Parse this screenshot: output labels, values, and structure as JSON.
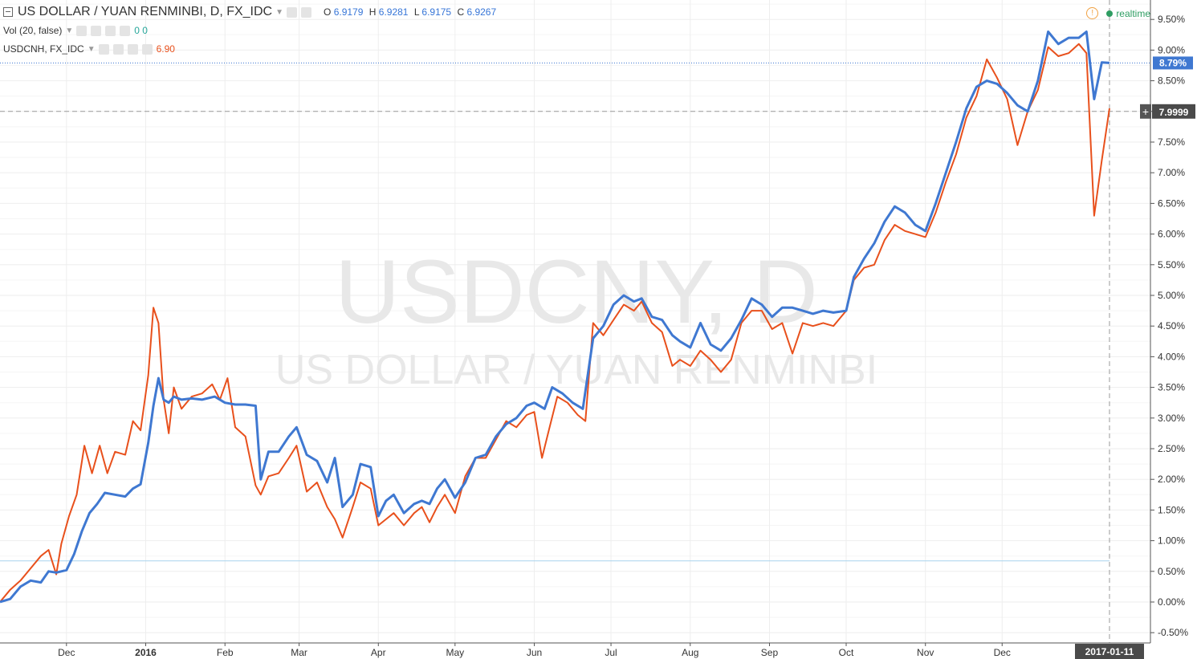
{
  "header": {
    "title": "US DOLLAR / YUAN RENMINBI, D, FX_IDC",
    "ohlc": [
      {
        "label": "O",
        "value": "6.9179"
      },
      {
        "label": "H",
        "value": "6.9281"
      },
      {
        "label": "L",
        "value": "6.9175"
      },
      {
        "label": "C",
        "value": "6.9267"
      }
    ],
    "vol_label": "Vol (20, false)",
    "vol_values": "0 0",
    "compare_label": "USDCNH, FX_IDC",
    "compare_value": "6.90",
    "realtime": "realtime",
    "warn_icon": "!"
  },
  "watermark": {
    "line1": "USDCNY, D",
    "line2": "US DOLLAR / YUAN RENMINBI"
  },
  "price_tags": {
    "main": "8.79%",
    "cursor": "7.9999",
    "cursor_plus": "+",
    "date_tag": "2017-01-11"
  },
  "colors": {
    "usdcny": "#3f78d1",
    "usdcnh": "#e8501c",
    "accent": "#2e9d62"
  },
  "chart_data": {
    "type": "line",
    "y_unit": "%",
    "ylim": [
      -0.6,
      9.8
    ],
    "y_ticks": [
      "9.50%",
      "9.00%",
      "8.50%",
      "8.00%",
      "7.50%",
      "7.00%",
      "6.50%",
      "6.00%",
      "5.50%",
      "5.00%",
      "4.50%",
      "4.00%",
      "3.50%",
      "3.00%",
      "2.50%",
      "2.00%",
      "1.50%",
      "1.00%",
      "0.50%",
      "0.00%",
      "-0.50%"
    ],
    "x_ticks": [
      {
        "label": "Dec",
        "day": 26,
        "bold": false
      },
      {
        "label": "2016",
        "day": 57,
        "bold": true
      },
      {
        "label": "Feb",
        "day": 88,
        "bold": false
      },
      {
        "label": "Mar",
        "day": 117,
        "bold": false
      },
      {
        "label": "Apr",
        "day": 148,
        "bold": false
      },
      {
        "label": "May",
        "day": 178,
        "bold": false
      },
      {
        "label": "Jun",
        "day": 209,
        "bold": false
      },
      {
        "label": "Jul",
        "day": 239,
        "bold": false
      },
      {
        "label": "Aug",
        "day": 270,
        "bold": false
      },
      {
        "label": "Sep",
        "day": 301,
        "bold": false
      },
      {
        "label": "Oct",
        "day": 331,
        "bold": false
      },
      {
        "label": "Nov",
        "day": 362,
        "bold": false
      },
      {
        "label": "Dec",
        "day": 392,
        "bold": false
      }
    ],
    "x_range_days": [
      0,
      434
    ],
    "x_cursor_day": 434,
    "h_line_main": 8.79,
    "h_line_cursor": 7.9999,
    "h_line_low": 0.67,
    "series": [
      {
        "name": "USDCNY",
        "color": "#3f78d1",
        "points": [
          [
            0,
            0.0
          ],
          [
            4,
            0.05
          ],
          [
            8,
            0.25
          ],
          [
            12,
            0.35
          ],
          [
            16,
            0.32
          ],
          [
            19,
            0.5
          ],
          [
            22,
            0.48
          ],
          [
            26,
            0.52
          ],
          [
            29,
            0.78
          ],
          [
            32,
            1.15
          ],
          [
            35,
            1.45
          ],
          [
            38,
            1.6
          ],
          [
            41,
            1.78
          ],
          [
            45,
            1.75
          ],
          [
            49,
            1.72
          ],
          [
            52,
            1.85
          ],
          [
            55,
            1.92
          ],
          [
            58,
            2.6
          ],
          [
            60,
            3.2
          ],
          [
            62,
            3.65
          ],
          [
            64,
            3.3
          ],
          [
            66,
            3.25
          ],
          [
            68,
            3.35
          ],
          [
            71,
            3.3
          ],
          [
            75,
            3.32
          ],
          [
            79,
            3.3
          ],
          [
            84,
            3.35
          ],
          [
            88,
            3.25
          ],
          [
            92,
            3.22
          ],
          [
            96,
            3.22
          ],
          [
            100,
            3.2
          ],
          [
            102,
            2.0
          ],
          [
            105,
            2.45
          ],
          [
            109,
            2.45
          ],
          [
            113,
            2.7
          ],
          [
            116,
            2.85
          ],
          [
            120,
            2.4
          ],
          [
            124,
            2.3
          ],
          [
            128,
            1.95
          ],
          [
            131,
            2.35
          ],
          [
            134,
            1.55
          ],
          [
            138,
            1.75
          ],
          [
            141,
            2.25
          ],
          [
            145,
            2.2
          ],
          [
            148,
            1.4
          ],
          [
            151,
            1.65
          ],
          [
            154,
            1.75
          ],
          [
            158,
            1.45
          ],
          [
            162,
            1.6
          ],
          [
            165,
            1.65
          ],
          [
            168,
            1.6
          ],
          [
            171,
            1.85
          ],
          [
            174,
            2.0
          ],
          [
            178,
            1.7
          ],
          [
            182,
            1.95
          ],
          [
            186,
            2.35
          ],
          [
            190,
            2.4
          ],
          [
            194,
            2.7
          ],
          [
            198,
            2.9
          ],
          [
            202,
            3.0
          ],
          [
            206,
            3.2
          ],
          [
            209,
            3.25
          ],
          [
            213,
            3.15
          ],
          [
            216,
            3.5
          ],
          [
            220,
            3.4
          ],
          [
            224,
            3.25
          ],
          [
            228,
            3.15
          ],
          [
            232,
            4.3
          ],
          [
            236,
            4.5
          ],
          [
            240,
            4.85
          ],
          [
            244,
            5.0
          ],
          [
            248,
            4.9
          ],
          [
            251,
            4.95
          ],
          [
            255,
            4.65
          ],
          [
            259,
            4.6
          ],
          [
            263,
            4.35
          ],
          [
            266,
            4.25
          ],
          [
            270,
            4.15
          ],
          [
            274,
            4.55
          ],
          [
            278,
            4.2
          ],
          [
            282,
            4.1
          ],
          [
            286,
            4.3
          ],
          [
            290,
            4.6
          ],
          [
            294,
            4.95
          ],
          [
            298,
            4.85
          ],
          [
            302,
            4.65
          ],
          [
            306,
            4.8
          ],
          [
            310,
            4.8
          ],
          [
            314,
            4.75
          ],
          [
            318,
            4.7
          ],
          [
            322,
            4.75
          ],
          [
            326,
            4.72
          ],
          [
            331,
            4.75
          ],
          [
            334,
            5.3
          ],
          [
            338,
            5.6
          ],
          [
            342,
            5.85
          ],
          [
            346,
            6.2
          ],
          [
            350,
            6.45
          ],
          [
            354,
            6.35
          ],
          [
            358,
            6.15
          ],
          [
            362,
            6.05
          ],
          [
            366,
            6.5
          ],
          [
            370,
            7.0
          ],
          [
            374,
            7.5
          ],
          [
            378,
            8.05
          ],
          [
            382,
            8.4
          ],
          [
            386,
            8.5
          ],
          [
            390,
            8.45
          ],
          [
            394,
            8.3
          ],
          [
            398,
            8.1
          ],
          [
            402,
            8.0
          ],
          [
            406,
            8.5
          ],
          [
            410,
            9.3
          ],
          [
            414,
            9.1
          ],
          [
            418,
            9.2
          ],
          [
            422,
            9.2
          ],
          [
            425,
            9.3
          ],
          [
            428,
            8.2
          ],
          [
            431,
            8.8
          ],
          [
            434,
            8.79
          ]
        ]
      },
      {
        "name": "USDCNH",
        "color": "#e8501c",
        "points": [
          [
            0,
            0.0
          ],
          [
            4,
            0.2
          ],
          [
            8,
            0.35
          ],
          [
            12,
            0.55
          ],
          [
            16,
            0.75
          ],
          [
            19,
            0.85
          ],
          [
            22,
            0.45
          ],
          [
            24,
            0.95
          ],
          [
            27,
            1.4
          ],
          [
            30,
            1.75
          ],
          [
            33,
            2.55
          ],
          [
            36,
            2.1
          ],
          [
            39,
            2.55
          ],
          [
            42,
            2.1
          ],
          [
            45,
            2.45
          ],
          [
            49,
            2.4
          ],
          [
            52,
            2.95
          ],
          [
            55,
            2.8
          ],
          [
            58,
            3.7
          ],
          [
            60,
            4.8
          ],
          [
            62,
            4.55
          ],
          [
            64,
            3.3
          ],
          [
            66,
            2.75
          ],
          [
            68,
            3.5
          ],
          [
            71,
            3.15
          ],
          [
            75,
            3.35
          ],
          [
            79,
            3.4
          ],
          [
            83,
            3.55
          ],
          [
            86,
            3.3
          ],
          [
            89,
            3.65
          ],
          [
            92,
            2.85
          ],
          [
            96,
            2.7
          ],
          [
            100,
            1.9
          ],
          [
            102,
            1.75
          ],
          [
            105,
            2.05
          ],
          [
            109,
            2.1
          ],
          [
            113,
            2.35
          ],
          [
            116,
            2.55
          ],
          [
            120,
            1.8
          ],
          [
            124,
            1.95
          ],
          [
            128,
            1.55
          ],
          [
            131,
            1.35
          ],
          [
            134,
            1.05
          ],
          [
            138,
            1.55
          ],
          [
            141,
            1.95
          ],
          [
            145,
            1.85
          ],
          [
            148,
            1.25
          ],
          [
            151,
            1.35
          ],
          [
            154,
            1.45
          ],
          [
            158,
            1.25
          ],
          [
            162,
            1.45
          ],
          [
            165,
            1.55
          ],
          [
            168,
            1.3
          ],
          [
            171,
            1.55
          ],
          [
            174,
            1.75
          ],
          [
            178,
            1.45
          ],
          [
            182,
            2.05
          ],
          [
            186,
            2.35
          ],
          [
            190,
            2.35
          ],
          [
            194,
            2.65
          ],
          [
            198,
            2.95
          ],
          [
            202,
            2.85
          ],
          [
            206,
            3.05
          ],
          [
            209,
            3.1
          ],
          [
            212,
            2.35
          ],
          [
            215,
            2.85
          ],
          [
            218,
            3.35
          ],
          [
            222,
            3.25
          ],
          [
            226,
            3.05
          ],
          [
            229,
            2.95
          ],
          [
            232,
            4.55
          ],
          [
            236,
            4.35
          ],
          [
            240,
            4.6
          ],
          [
            244,
            4.85
          ],
          [
            248,
            4.75
          ],
          [
            251,
            4.9
          ],
          [
            255,
            4.55
          ],
          [
            259,
            4.4
          ],
          [
            263,
            3.85
          ],
          [
            266,
            3.95
          ],
          [
            270,
            3.85
          ],
          [
            274,
            4.1
          ],
          [
            278,
            3.95
          ],
          [
            282,
            3.75
          ],
          [
            286,
            3.95
          ],
          [
            290,
            4.55
          ],
          [
            294,
            4.75
          ],
          [
            298,
            4.75
          ],
          [
            302,
            4.45
          ],
          [
            306,
            4.55
          ],
          [
            310,
            4.05
          ],
          [
            314,
            4.55
          ],
          [
            318,
            4.5
          ],
          [
            322,
            4.55
          ],
          [
            326,
            4.5
          ],
          [
            331,
            4.75
          ],
          [
            334,
            5.25
          ],
          [
            338,
            5.45
          ],
          [
            342,
            5.5
          ],
          [
            346,
            5.9
          ],
          [
            350,
            6.15
          ],
          [
            354,
            6.05
          ],
          [
            358,
            6.0
          ],
          [
            362,
            5.95
          ],
          [
            366,
            6.35
          ],
          [
            370,
            6.85
          ],
          [
            374,
            7.3
          ],
          [
            378,
            7.9
          ],
          [
            382,
            8.25
          ],
          [
            386,
            8.85
          ],
          [
            390,
            8.55
          ],
          [
            394,
            8.2
          ],
          [
            398,
            7.45
          ],
          [
            402,
            8.0
          ],
          [
            406,
            8.35
          ],
          [
            410,
            9.05
          ],
          [
            414,
            8.9
          ],
          [
            418,
            8.95
          ],
          [
            422,
            9.1
          ],
          [
            425,
            8.95
          ],
          [
            428,
            6.3
          ],
          [
            431,
            7.2
          ],
          [
            434,
            8.05
          ]
        ]
      }
    ]
  }
}
